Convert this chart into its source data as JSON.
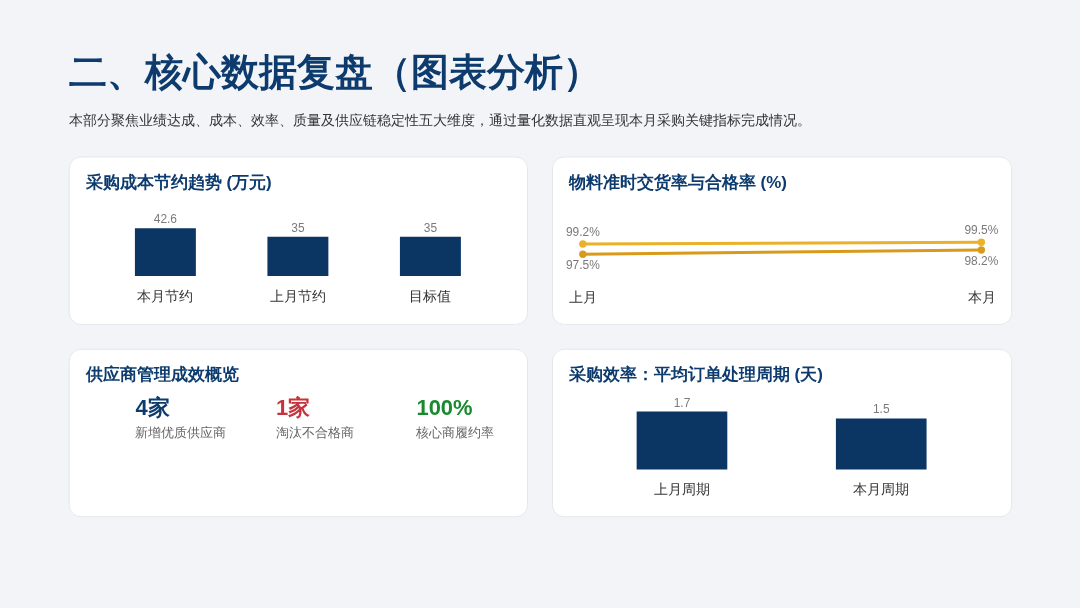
{
  "chart_data": [
    {
      "type": "other",
      "title": "二、核心数据复盘（图表分析）",
      "subtitle": "本部分聚焦业绩达成、成本、效率、质量及供应链稳定性五大维度，通过量化数据直观呈现本月采购关键指标完成情况。"
    },
    {
      "type": "bar",
      "title": "采购成本节约趋势 (万元)",
      "categories": [
        "本月节约",
        "上月节约",
        "目标值"
      ],
      "values": [
        42.6,
        35,
        35
      ],
      "color": "#0b3563",
      "data_labels": true,
      "tick_labels": "x"
    },
    {
      "type": "line",
      "title": "物料准时交货率与合格率 (%)",
      "categories": [
        "上月",
        "本月"
      ],
      "series": [
        {
          "color": "#d99a1c",
          "values": [
            97.5,
            98.2
          ],
          "value_labels": [
            "97.5%",
            "98.2%"
          ]
        },
        {
          "color": "#eab12b",
          "values": [
            99.2,
            99.5
          ],
          "value_labels": [
            "99.2%",
            "99.5%"
          ]
        }
      ],
      "marker": "circle",
      "tick_labels": "x"
    },
    {
      "type": "other",
      "title": "供应商管理成效概览",
      "categories": [
        "新增优质供应商",
        "淘汰不合格商",
        "核心商履约率"
      ],
      "values": [
        4,
        1,
        100
      ],
      "value_labels": [
        "4家",
        "1家",
        "100%"
      ]
    },
    {
      "type": "bar",
      "title": "采购效率：平均订单处理周期 (天)",
      "categories": [
        "上月周期",
        "本月周期"
      ],
      "values": [
        1.7,
        1.5
      ],
      "color": "#0b3563",
      "data_labels": true,
      "tick_labels": "x"
    }
  ]
}
